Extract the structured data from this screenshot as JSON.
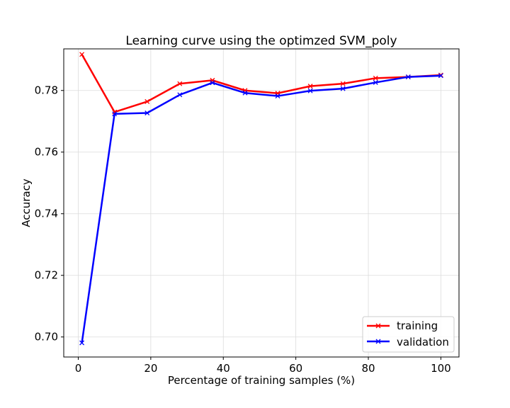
{
  "chart_data": {
    "type": "line",
    "title": "Learning curve using the optimzed SVM_poly",
    "xlabel": "Percentage of training samples (%)",
    "ylabel": "Accuracy",
    "xlim": [
      -4,
      105
    ],
    "ylim": [
      0.6935,
      0.7935
    ],
    "xticks": [
      0,
      20,
      40,
      60,
      80,
      100
    ],
    "yticks": [
      0.7,
      0.72,
      0.74,
      0.76,
      0.78
    ],
    "xtick_labels": [
      "0",
      "20",
      "40",
      "60",
      "80",
      "100"
    ],
    "ytick_labels": [
      "0.70",
      "0.72",
      "0.74",
      "0.76",
      "0.78"
    ],
    "grid": true,
    "legend_position": "bottom-right",
    "series": [
      {
        "name": "training",
        "color": "#ff0000",
        "marker": "x",
        "x": [
          1,
          10,
          19,
          28,
          37,
          46,
          55,
          64,
          73,
          82,
          91,
          100
        ],
        "y": [
          0.7917,
          0.773,
          0.7764,
          0.7822,
          0.7833,
          0.78,
          0.7791,
          0.7814,
          0.7822,
          0.784,
          0.7844,
          0.785
        ]
      },
      {
        "name": "validation",
        "color": "#0000ff",
        "marker": "x",
        "x": [
          1,
          10,
          19,
          28,
          37,
          46,
          55,
          64,
          73,
          82,
          91,
          100
        ],
        "y": [
          0.6981,
          0.7724,
          0.7727,
          0.7786,
          0.7825,
          0.7792,
          0.7782,
          0.7799,
          0.7806,
          0.7826,
          0.7844,
          0.7848
        ]
      }
    ]
  }
}
